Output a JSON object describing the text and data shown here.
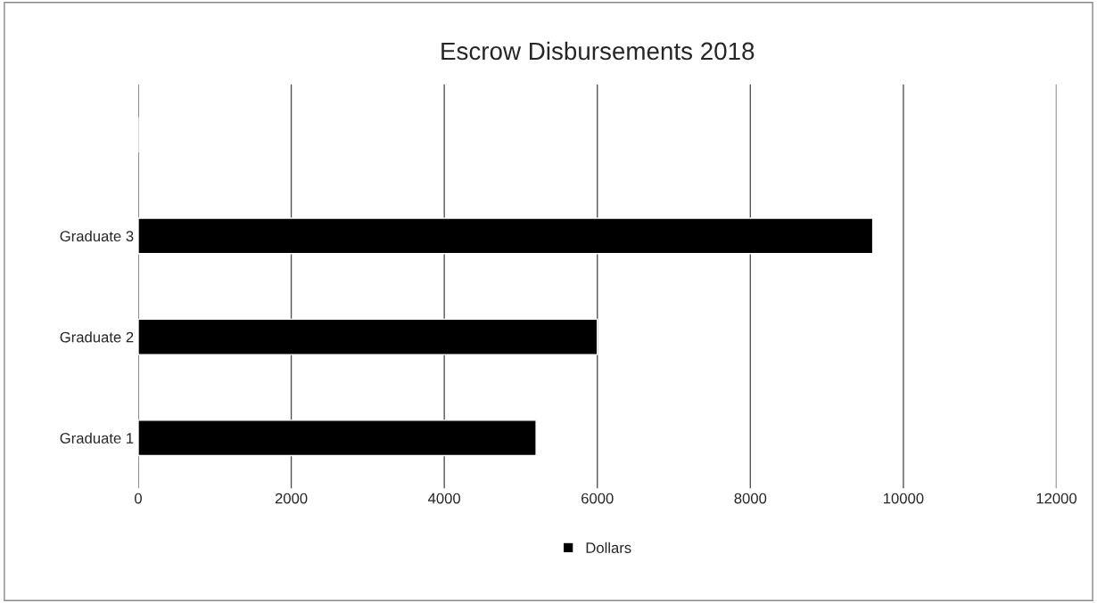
{
  "chart_data": {
    "type": "bar",
    "orientation": "horizontal",
    "title": "Escrow Disbursements 2018",
    "categories": [
      null,
      "Graduate 3",
      "Graduate 2",
      "Graduate 1"
    ],
    "series": [
      {
        "name": "Dollars",
        "color": "#000000",
        "values": [
          null,
          9600,
          6000,
          5200
        ]
      }
    ],
    "xlim": [
      0,
      12000
    ],
    "xticks": [
      0,
      2000,
      4000,
      6000,
      8000,
      10000,
      12000
    ],
    "grid": "x",
    "legend": "bottom"
  }
}
